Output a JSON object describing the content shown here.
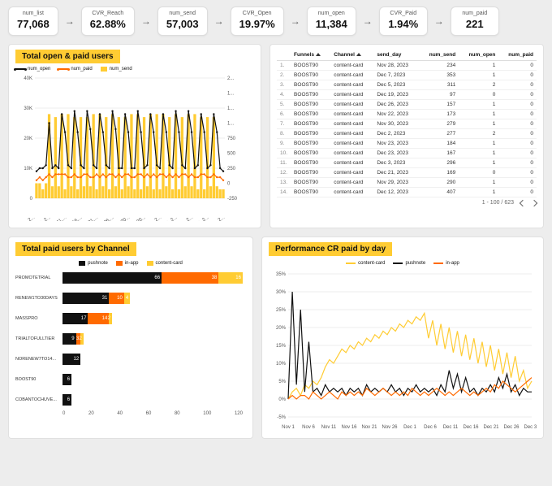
{
  "colors": {
    "accent_yellow": "#ffcc33",
    "orange": "#ff6a00",
    "black": "#111111",
    "grid": "#eeeeee",
    "axis": "#555555",
    "bg": "#ededed"
  },
  "kpi": [
    {
      "label": "num_list",
      "value": "77,068"
    },
    {
      "label": "CVR_Reach",
      "value": "62.88%"
    },
    {
      "label": "num_send",
      "value": "57,003"
    },
    {
      "label": "CVR_Open",
      "value": "19.97%"
    },
    {
      "label": "num_open",
      "value": "11,384"
    },
    {
      "label": "CVR_Paid",
      "value": "1.94%"
    },
    {
      "label": "num_paid",
      "value": "221"
    }
  ],
  "combo": {
    "title": "Total open & paid users",
    "legend": [
      {
        "name": "num_open",
        "type": "line",
        "color": "#111111"
      },
      {
        "name": "num_paid",
        "type": "line",
        "color": "#ff6a00"
      },
      {
        "name": "num_send",
        "type": "bar",
        "color": "#ffcc33"
      }
    ],
    "y_left": {
      "min": 0,
      "max": 40000,
      "ticks": [
        "0",
        "10K",
        "20K",
        "30K",
        "40K"
      ]
    },
    "y_right": {
      "min": -250,
      "max": 2000,
      "ticks": [
        "-250",
        "0",
        "250",
        "500",
        "750",
        "1...",
        "1...",
        "1...",
        "2..."
      ]
    },
    "x_labels": [
      "v 1, 2...",
      "Nov 6, 2...",
      "Nov 11,...",
      "Nov 16,...",
      "Nov 21,...",
      "Nov 26,...",
      "Dec 1, 20...",
      "Dec 6, 20...",
      "Dec 11, 2...",
      "Dec 16, 2...",
      "Dec 21, 2...",
      "Dec 26, 2...",
      "Dec 31, 2..."
    ],
    "bars": [
      5,
      5,
      3,
      5,
      28,
      4,
      27,
      4,
      28,
      3,
      28,
      4,
      27,
      3,
      27,
      4,
      27,
      4,
      28,
      3,
      28,
      4,
      27,
      3,
      28,
      4,
      27,
      3,
      27,
      4,
      28,
      3,
      28,
      3,
      27,
      4,
      28,
      3,
      28,
      3,
      28,
      4,
      27,
      3,
      28,
      3,
      27,
      4,
      28,
      4,
      28,
      3,
      27,
      3,
      27,
      4,
      27,
      4,
      3,
      3
    ],
    "line_open": [
      9,
      10,
      10,
      11,
      25,
      10,
      11,
      10,
      28,
      22,
      11,
      10,
      29,
      22,
      11,
      10,
      29,
      23,
      11,
      10,
      28,
      22,
      11,
      10,
      29,
      23,
      10,
      10,
      28,
      22,
      10,
      10,
      29,
      22,
      10,
      11,
      28,
      22,
      11,
      10,
      28,
      22,
      11,
      10,
      29,
      22,
      11,
      10,
      29,
      22,
      10,
      11,
      28,
      22,
      10,
      11,
      28,
      22,
      10,
      9
    ],
    "line_paid": [
      6,
      7,
      6,
      7,
      8,
      7,
      8,
      8,
      8,
      8,
      7,
      7,
      8,
      7,
      7,
      8,
      8,
      7,
      7,
      8,
      7,
      8,
      7,
      8,
      8,
      7,
      8,
      7,
      8,
      8,
      7,
      7,
      8,
      8,
      7,
      8,
      7,
      8,
      7,
      8,
      8,
      7,
      8,
      7,
      8,
      7,
      8,
      8,
      7,
      8,
      7,
      7,
      8,
      8,
      7,
      7,
      8,
      7,
      7,
      6
    ]
  },
  "table": {
    "columns": [
      "",
      "Funnels",
      "Channel",
      "send_day",
      "num_send",
      "num_open",
      "num_paid"
    ],
    "rows": [
      [
        "1.",
        "BOOST90",
        "content-card",
        "Nov 28, 2023",
        "234",
        "1",
        "0"
      ],
      [
        "2.",
        "BOOST90",
        "content-card",
        "Dec 7, 2023",
        "353",
        "1",
        "0"
      ],
      [
        "3.",
        "BOOST90",
        "content-card",
        "Dec 5, 2023",
        "311",
        "2",
        "0"
      ],
      [
        "4.",
        "BOOST90",
        "content-card",
        "Dec 19, 2023",
        "97",
        "0",
        "0"
      ],
      [
        "5.",
        "BOOST90",
        "content-card",
        "Dec 26, 2023",
        "157",
        "1",
        "0"
      ],
      [
        "6.",
        "BOOST90",
        "content-card",
        "Nov 22, 2023",
        "173",
        "1",
        "0"
      ],
      [
        "7.",
        "BOOST90",
        "content-card",
        "Nov 30, 2023",
        "279",
        "1",
        "0"
      ],
      [
        "8.",
        "BOOST90",
        "content-card",
        "Dec 2, 2023",
        "277",
        "2",
        "0"
      ],
      [
        "9.",
        "BOOST90",
        "content-card",
        "Nov 23, 2023",
        "184",
        "1",
        "0"
      ],
      [
        "10.",
        "BOOST90",
        "content-card",
        "Dec 23, 2023",
        "167",
        "1",
        "0"
      ],
      [
        "11.",
        "BOOST90",
        "content-card",
        "Dec 3, 2023",
        "296",
        "1",
        "0"
      ],
      [
        "12.",
        "BOOST90",
        "content-card",
        "Dec 21, 2023",
        "169",
        "0",
        "0"
      ],
      [
        "13.",
        "BOOST90",
        "content-card",
        "Nov 29, 2023",
        "290",
        "1",
        "0"
      ],
      [
        "14.",
        "BOOST90",
        "content-card",
        "Dec 12, 2023",
        "407",
        "1",
        "0"
      ]
    ],
    "pager": "1 - 100 / 623"
  },
  "bar": {
    "title": "Total paid users by Channel",
    "legend": [
      {
        "name": "pushnote",
        "color": "#111111"
      },
      {
        "name": "in-app",
        "color": "#ff6a00"
      },
      {
        "name": "content-card",
        "color": "#ffcc33"
      }
    ],
    "x_max": 120,
    "x_ticks": [
      "0",
      "20",
      "40",
      "60",
      "80",
      "100",
      "120"
    ],
    "rows": [
      {
        "label": "PROMOTETRIAL",
        "segs": [
          {
            "c": "#111111",
            "v": 66
          },
          {
            "c": "#ff6a00",
            "v": 38
          },
          {
            "c": "#ffcc33",
            "v": 16
          }
        ]
      },
      {
        "label": "RENEW1TO30DAYS",
        "segs": [
          {
            "c": "#111111",
            "v": 31
          },
          {
            "c": "#ff6a00",
            "v": 10
          },
          {
            "c": "#ffcc33",
            "v": 4
          }
        ]
      },
      {
        "label": "MASSPRO",
        "segs": [
          {
            "c": "#111111",
            "v": 17
          },
          {
            "c": "#ff6a00",
            "v": 14
          },
          {
            "c": "#ffcc33",
            "v": 2
          }
        ]
      },
      {
        "label": "TRIALTOFULLTIER",
        "segs": [
          {
            "c": "#111111",
            "v": 9
          },
          {
            "c": "#ff6a00",
            "v": 3
          },
          {
            "c": "#ffcc33",
            "v": 2
          }
        ]
      },
      {
        "label": "NORENEW7TO14...",
        "segs": [
          {
            "c": "#111111",
            "v": 12
          },
          {
            "c": "#ff6a00",
            "v": 0
          },
          {
            "c": "#ffcc33",
            "v": 0
          }
        ]
      },
      {
        "label": "BOOST90",
        "segs": [
          {
            "c": "#111111",
            "v": 6
          },
          {
            "c": "#ff6a00",
            "v": 0
          },
          {
            "c": "#ffcc33",
            "v": 0
          }
        ]
      },
      {
        "label": "COBANTOCHUVE...",
        "segs": [
          {
            "c": "#111111",
            "v": 6
          },
          {
            "c": "#ff6a00",
            "v": 0
          },
          {
            "c": "#ffcc33",
            "v": 0
          }
        ]
      }
    ]
  },
  "perf": {
    "title": "Performance CR paid by day",
    "legend": [
      {
        "name": "content-card",
        "color": "#ffcc33"
      },
      {
        "name": "pushnote",
        "color": "#111111"
      },
      {
        "name": "in-app",
        "color": "#ff6a00"
      }
    ],
    "y": {
      "min": -5,
      "max": 35,
      "ticks": [
        "-5%",
        "0%",
        "5%",
        "10%",
        "15%",
        "20%",
        "25%",
        "30%",
        "35%"
      ]
    },
    "x_labels": [
      "Nov 1",
      "Nov 6",
      "Nov 11",
      "Nov 16",
      "Nov 21",
      "Nov 26",
      "Dec 1",
      "Dec 6",
      "Dec 11",
      "Dec 16",
      "Dec 21",
      "Dec 26",
      "Dec 31"
    ],
    "lines": {
      "content-card": [
        0,
        2,
        3,
        1,
        4,
        3,
        5,
        4,
        6,
        9,
        11,
        10,
        12,
        14,
        13,
        15,
        14,
        16,
        15,
        17,
        16,
        18,
        17,
        19,
        18,
        20,
        19,
        21,
        20,
        22,
        21,
        23,
        22,
        24,
        17,
        22,
        15,
        21,
        14,
        20,
        13,
        19,
        12,
        18,
        11,
        17,
        10,
        16,
        9,
        15,
        8,
        14,
        7,
        13,
        6,
        12,
        5,
        8,
        3,
        5
      ],
      "pushnote": [
        0,
        30,
        4,
        25,
        2,
        16,
        2,
        3,
        1,
        4,
        2,
        3,
        2,
        3,
        1,
        3,
        2,
        3,
        1,
        4,
        2,
        3,
        2,
        3,
        2,
        4,
        2,
        3,
        1,
        3,
        2,
        4,
        2,
        3,
        2,
        3,
        1,
        4,
        2,
        8,
        3,
        7,
        2,
        6,
        2,
        3,
        1,
        3,
        2,
        4,
        2,
        6,
        3,
        7,
        2,
        4,
        1,
        3,
        2,
        2
      ],
      "in-app": [
        0,
        1,
        0,
        1,
        1,
        0,
        2,
        1,
        0,
        1,
        2,
        1,
        0,
        2,
        1,
        2,
        1,
        2,
        1,
        3,
        2,
        1,
        2,
        3,
        2,
        1,
        2,
        1,
        2,
        1,
        3,
        2,
        1,
        2,
        1,
        2,
        3,
        2,
        1,
        2,
        1,
        2,
        3,
        2,
        1,
        2,
        1,
        2,
        3,
        2,
        4,
        3,
        5,
        4,
        3,
        2,
        3,
        4,
        5,
        6
      ]
    }
  }
}
